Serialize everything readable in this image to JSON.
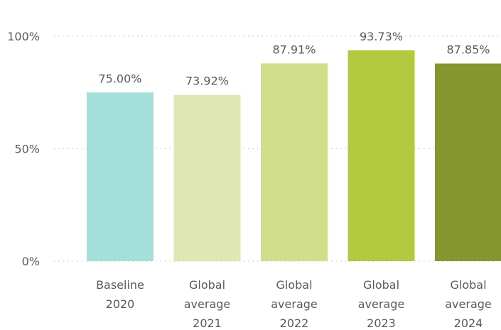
{
  "chart_data": {
    "type": "bar",
    "title": "",
    "xlabel": "",
    "ylabel": "",
    "categories": [
      [
        "Baseline",
        "2020"
      ],
      [
        "Global",
        "average",
        "2021"
      ],
      [
        "Global",
        "average",
        "2022"
      ],
      [
        "Global",
        "average",
        "2023"
      ],
      [
        "Global",
        "average",
        "2024"
      ]
    ],
    "values": [
      75.0,
      73.92,
      87.91,
      93.73,
      87.85
    ],
    "value_labels": [
      "75.00%",
      "73.92%",
      "87.91%",
      "93.73%",
      "87.85%"
    ],
    "colors": [
      "#a3e0d9",
      "#dfe8b2",
      "#d1df8d",
      "#b3c940",
      "#86962f"
    ],
    "ylim": [
      0,
      100
    ],
    "yticks": [
      0,
      50,
      100
    ],
    "ytick_labels": [
      "0%",
      "50%",
      "100%"
    ],
    "grid": true,
    "legend": "none"
  }
}
